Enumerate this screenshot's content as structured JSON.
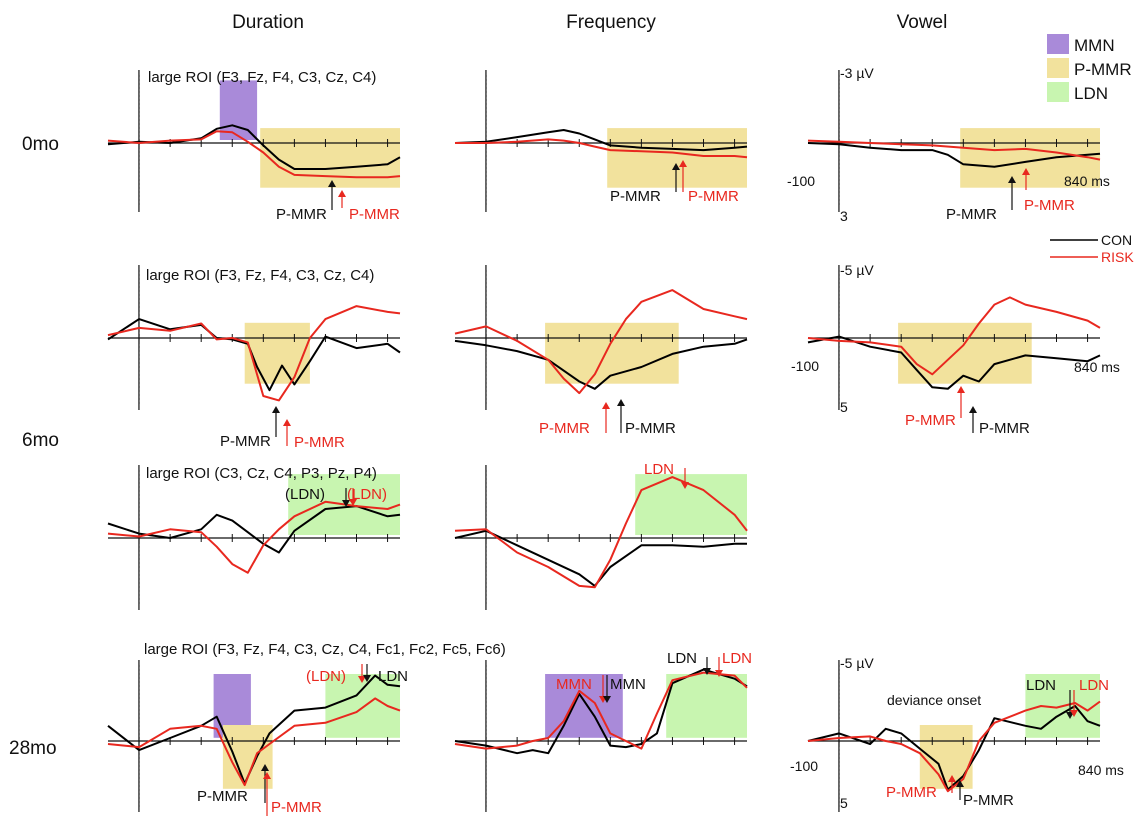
{
  "columns": [
    "Duration",
    "Frequency",
    "Vowel"
  ],
  "rows": [
    "0mo",
    "6mo",
    "28mo"
  ],
  "legend": {
    "windows": [
      {
        "label": "MMN",
        "color": "#a98ad9"
      },
      {
        "label": "P-MMR",
        "color": "#f2e29d"
      },
      {
        "label": "LDN",
        "color": "#c8f5b0"
      }
    ],
    "groups": [
      {
        "label": "CON",
        "color": "#000000"
      },
      {
        "label": "RISK",
        "color": "#e8281f"
      }
    ]
  },
  "roi_labels": {
    "front": "large ROI (F3, Fz, F4, C3, Cz, C4)",
    "central_parietal": "large ROI (C3, Cz, C4, P3, Pz, P4)",
    "extended": "large ROI (F3, Fz, F4, C3, Cz, C4, Fc1, Fc2, Fc5, Fc6)"
  },
  "scale": {
    "top_0mo": "-3 µV",
    "bottom_0mo": "3",
    "top_6mo": "-5 µV",
    "bottom_6mo": "5",
    "top_28mo": "-5 µV",
    "bottom_28mo": "5",
    "time_start": "-100",
    "time_end": "840 ms",
    "deviance_onset": "deviance onset"
  },
  "annotations": {
    "pmmr": "P-MMR",
    "mmn": "MMN",
    "ldn": "LDN",
    "ldn_paren": "(LDN)"
  },
  "chart_data": {
    "type": "line",
    "x_unit": "ms",
    "x_range": [
      -100,
      840
    ],
    "y_note": "negative up",
    "panels": [
      {
        "id": "0mo-duration",
        "row": "0mo",
        "col": "Duration",
        "ylim": [
          3,
          -3
        ],
        "windows": [
          {
            "type": "MMN",
            "from": 260,
            "to": 380
          },
          {
            "type": "P-MMR",
            "from": 390,
            "to": 840
          }
        ],
        "series": [
          {
            "name": "CON",
            "x": [
              -100,
              0,
              100,
              200,
              250,
              300,
              350,
              400,
              450,
              500,
              600,
              700,
              800,
              840
            ],
            "y": [
              0.05,
              -0.05,
              0.0,
              -0.2,
              -0.6,
              -0.75,
              -0.55,
              0.1,
              0.7,
              1.1,
              1.1,
              1.0,
              0.9,
              0.6
            ]
          },
          {
            "name": "RISK",
            "x": [
              -100,
              0,
              100,
              200,
              250,
              300,
              350,
              400,
              450,
              500,
              600,
              700,
              800,
              840
            ],
            "y": [
              -0.1,
              0.0,
              -0.1,
              -0.15,
              -0.5,
              -0.45,
              -0.05,
              0.4,
              1.0,
              1.35,
              1.4,
              1.45,
              1.45,
              1.4
            ]
          }
        ]
      },
      {
        "id": "0mo-frequency",
        "row": "0mo",
        "col": "Frequency",
        "ylim": [
          3,
          -3
        ],
        "windows": [
          {
            "type": "P-MMR",
            "from": 390,
            "to": 840
          }
        ],
        "series": [
          {
            "name": "CON",
            "x": [
              -100,
              0,
              100,
              200,
              250,
              300,
              350,
              400,
              500,
              600,
              700,
              800,
              840
            ],
            "y": [
              0.0,
              -0.05,
              -0.25,
              -0.45,
              -0.55,
              -0.4,
              -0.15,
              0.1,
              0.2,
              0.25,
              0.3,
              0.2,
              0.15
            ]
          },
          {
            "name": "RISK",
            "x": [
              -100,
              0,
              100,
              200,
              250,
              300,
              350,
              400,
              500,
              600,
              700,
              800,
              840
            ],
            "y": [
              0.0,
              0.0,
              -0.05,
              -0.15,
              -0.1,
              0.0,
              0.15,
              0.3,
              0.35,
              0.4,
              0.55,
              0.55,
              0.6
            ]
          }
        ]
      },
      {
        "id": "0mo-vowel",
        "row": "0mo",
        "col": "Vowel",
        "ylim": [
          3,
          -3
        ],
        "windows": [
          {
            "type": "P-MMR",
            "from": 390,
            "to": 840
          }
        ],
        "series": [
          {
            "name": "CON",
            "x": [
              -100,
              0,
              100,
              200,
              300,
              350,
              400,
              500,
              600,
              700,
              800,
              840
            ],
            "y": [
              0.0,
              0.05,
              0.2,
              0.3,
              0.3,
              0.5,
              0.9,
              1.0,
              0.8,
              0.6,
              0.5,
              0.45
            ]
          },
          {
            "name": "RISK",
            "x": [
              -100,
              0,
              100,
              200,
              300,
              400,
              500,
              600,
              700,
              800,
              840
            ],
            "y": [
              -0.1,
              -0.05,
              0.0,
              0.05,
              0.1,
              0.2,
              0.3,
              0.25,
              0.4,
              0.6,
              0.7
            ]
          }
        ]
      },
      {
        "id": "6mo-duration-front",
        "row": "6mo",
        "col": "Duration",
        "ylim": [
          5,
          -5
        ],
        "windows": [
          {
            "type": "P-MMR",
            "from": 340,
            "to": 550
          }
        ],
        "series": [
          {
            "name": "CON",
            "x": [
              -100,
              0,
              100,
              200,
              250,
              300,
              350,
              380,
              420,
              460,
              500,
              550,
              600,
              700,
              800,
              840
            ],
            "y": [
              0.1,
              -1.3,
              -0.6,
              -0.9,
              0.0,
              0.1,
              0.4,
              2.0,
              3.6,
              1.9,
              3.2,
              1.6,
              -0.1,
              0.7,
              0.4,
              1.0
            ]
          },
          {
            "name": "RISK",
            "x": [
              -100,
              0,
              100,
              200,
              250,
              300,
              350,
              400,
              450,
              500,
              550,
              600,
              700,
              800,
              840
            ],
            "y": [
              -0.2,
              -0.7,
              -0.5,
              -1.0,
              0.1,
              0.0,
              0.3,
              4.0,
              4.3,
              2.7,
              0.0,
              -1.3,
              -2.2,
              -1.8,
              -1.7
            ]
          }
        ]
      },
      {
        "id": "6mo-frequency-front",
        "row": "6mo",
        "col": "Frequency",
        "ylim": [
          5,
          -5
        ],
        "windows": [
          {
            "type": "P-MMR",
            "from": 190,
            "to": 620
          }
        ],
        "series": [
          {
            "name": "CON",
            "x": [
              -100,
              0,
              100,
              200,
              300,
              350,
              400,
              500,
              600,
              700,
              800,
              840
            ],
            "y": [
              0.2,
              0.5,
              0.9,
              1.5,
              3.0,
              3.5,
              2.6,
              2.0,
              1.1,
              0.6,
              0.4,
              0.1
            ]
          },
          {
            "name": "RISK",
            "x": [
              -100,
              0,
              100,
              200,
              250,
              300,
              350,
              400,
              450,
              500,
              600,
              700,
              800,
              840
            ],
            "y": [
              -0.3,
              -0.8,
              0.2,
              1.5,
              2.8,
              3.8,
              2.5,
              0.4,
              -1.3,
              -2.5,
              -3.3,
              -2.0,
              -1.5,
              -1.3
            ]
          }
        ]
      },
      {
        "id": "6mo-vowel-front",
        "row": "6mo",
        "col": "Vowel",
        "ylim": [
          5,
          -5
        ],
        "windows": [
          {
            "type": "P-MMR",
            "from": 190,
            "to": 620
          }
        ],
        "series": [
          {
            "name": "CON",
            "x": [
              -100,
              0,
              100,
              200,
              250,
              300,
              350,
              400,
              450,
              500,
              600,
              700,
              800,
              840
            ],
            "y": [
              0.3,
              -0.1,
              0.6,
              1.0,
              2.2,
              3.4,
              3.5,
              2.6,
              3.0,
              1.8,
              1.2,
              1.4,
              1.6,
              1.2
            ]
          },
          {
            "name": "RISK",
            "x": [
              -100,
              0,
              100,
              200,
              250,
              300,
              350,
              400,
              450,
              500,
              550,
              600,
              700,
              800,
              840
            ],
            "y": [
              0.0,
              0.2,
              0.3,
              0.6,
              1.8,
              2.5,
              1.5,
              0.5,
              -1.0,
              -2.3,
              -2.8,
              -2.3,
              -1.8,
              -1.2,
              -0.7
            ]
          }
        ]
      },
      {
        "id": "6mo-duration-central",
        "row": "6mo",
        "col": "Duration",
        "ylim": [
          5,
          -5
        ],
        "windows": [
          {
            "type": "LDN",
            "from": 480,
            "to": 840
          }
        ],
        "series": [
          {
            "name": "CON",
            "x": [
              -100,
              0,
              100,
              200,
              250,
              300,
              350,
              400,
              450,
              500,
              600,
              700,
              800,
              840
            ],
            "y": [
              -1.0,
              -0.3,
              0.0,
              -0.6,
              -1.6,
              -1.2,
              -0.4,
              0.4,
              1.0,
              -0.5,
              -2.0,
              -2.2,
              -1.5,
              -1.6
            ]
          },
          {
            "name": "RISK",
            "x": [
              -100,
              0,
              100,
              200,
              250,
              300,
              350,
              400,
              450,
              500,
              600,
              700,
              800,
              840
            ],
            "y": [
              -0.3,
              -0.1,
              -0.6,
              -0.4,
              0.6,
              1.8,
              2.4,
              0.5,
              -0.6,
              -1.5,
              -2.5,
              -2.2,
              -2.0,
              -2.3
            ]
          }
        ]
      },
      {
        "id": "6mo-frequency-central",
        "row": "6mo",
        "col": "Frequency",
        "ylim": [
          5,
          -5
        ],
        "windows": [
          {
            "type": "LDN",
            "from": 480,
            "to": 840
          }
        ],
        "series": [
          {
            "name": "CON",
            "x": [
              -100,
              0,
              100,
              200,
              300,
              350,
              400,
              500,
              600,
              700,
              800,
              840
            ],
            "y": [
              0.0,
              -0.5,
              0.5,
              1.5,
              2.5,
              3.3,
              2.0,
              0.5,
              0.5,
              0.6,
              0.4,
              0.4
            ]
          },
          {
            "name": "RISK",
            "x": [
              -100,
              0,
              100,
              200,
              300,
              350,
              400,
              450,
              500,
              600,
              700,
              800,
              840
            ],
            "y": [
              -0.5,
              -0.6,
              1.0,
              2.0,
              3.3,
              3.4,
              1.5,
              -1.0,
              -3.3,
              -4.2,
              -3.3,
              -1.6,
              -0.5
            ]
          }
        ]
      },
      {
        "id": "28mo-duration",
        "row": "28mo",
        "col": "Duration",
        "ylim": [
          5,
          -5
        ],
        "windows": [
          {
            "type": "MMN",
            "from": 240,
            "to": 360
          },
          {
            "type": "P-MMR",
            "from": 270,
            "to": 430
          },
          {
            "type": "LDN",
            "from": 600,
            "to": 840
          }
        ],
        "series": [
          {
            "name": "CON",
            "x": [
              -100,
              0,
              100,
              200,
              250,
              300,
              340,
              380,
              420,
              500,
              600,
              700,
              760,
              800,
              840
            ],
            "y": [
              -1.0,
              0.6,
              -0.2,
              -1.0,
              -1.6,
              0.7,
              2.8,
              1.0,
              -0.5,
              -2.0,
              -2.2,
              -3.0,
              -4.3,
              -3.7,
              -3.6
            ]
          },
          {
            "name": "RISK",
            "x": [
              -100,
              0,
              100,
              200,
              250,
              300,
              340,
              380,
              420,
              500,
              600,
              700,
              760,
              800,
              840
            ],
            "y": [
              0.2,
              0.4,
              -0.8,
              -1.0,
              -0.8,
              1.4,
              2.9,
              0.8,
              0.2,
              -1.0,
              -1.2,
              -1.9,
              -2.8,
              -2.3,
              -2.0
            ]
          }
        ]
      },
      {
        "id": "28mo-frequency",
        "row": "28mo",
        "col": "Frequency",
        "ylim": [
          5,
          -5
        ],
        "windows": [
          {
            "type": "MMN",
            "from": 190,
            "to": 440
          },
          {
            "type": "LDN",
            "from": 580,
            "to": 840
          }
        ],
        "series": [
          {
            "name": "CON",
            "x": [
              -100,
              0,
              100,
              150,
              200,
              250,
              300,
              350,
              400,
              450,
              500,
              550,
              600,
              700,
              800,
              840
            ],
            "y": [
              0.0,
              0.3,
              0.8,
              0.6,
              0.8,
              -1.0,
              -3.1,
              -1.6,
              0.3,
              0.4,
              0.2,
              -0.5,
              -3.8,
              -4.7,
              -4.1,
              -3.6
            ]
          },
          {
            "name": "RISK",
            "x": [
              -100,
              0,
              100,
              150,
              200,
              250,
              300,
              350,
              400,
              450,
              500,
              550,
              600,
              700,
              800,
              840
            ],
            "y": [
              0.2,
              0.5,
              0.3,
              0.0,
              -0.2,
              -1.3,
              -3.3,
              -2.5,
              -0.5,
              0.0,
              0.5,
              -1.8,
              -4.0,
              -4.5,
              -4.3,
              -3.5
            ]
          }
        ]
      },
      {
        "id": "28mo-vowel",
        "row": "28mo",
        "col": "Vowel",
        "ylim": [
          5,
          -5
        ],
        "windows": [
          {
            "type": "P-MMR",
            "from": 260,
            "to": 430
          },
          {
            "type": "LDN",
            "from": 600,
            "to": 840
          }
        ],
        "series": [
          {
            "name": "CON",
            "x": [
              -100,
              0,
              100,
              150,
              200,
              260,
              320,
              350,
              400,
              450,
              500,
              600,
              650,
              700,
              760,
              800,
              840
            ],
            "y": [
              0.0,
              -0.5,
              0.2,
              -0.8,
              -0.5,
              0.5,
              1.5,
              3.2,
              2.3,
              0.6,
              -1.5,
              -1.0,
              -0.8,
              -1.6,
              -2.3,
              -1.3,
              -1.0
            ]
          },
          {
            "name": "RISK",
            "x": [
              -100,
              0,
              100,
              150,
              200,
              260,
              320,
              350,
              400,
              450,
              500,
              600,
              650,
              700,
              760,
              800,
              840
            ],
            "y": [
              0.0,
              -0.2,
              -0.3,
              0.0,
              0.2,
              0.8,
              2.2,
              3.3,
              2.5,
              0.0,
              -1.2,
              -2.0,
              -2.3,
              -2.2,
              -2.5,
              -2.0,
              -2.6
            ]
          }
        ]
      }
    ]
  }
}
